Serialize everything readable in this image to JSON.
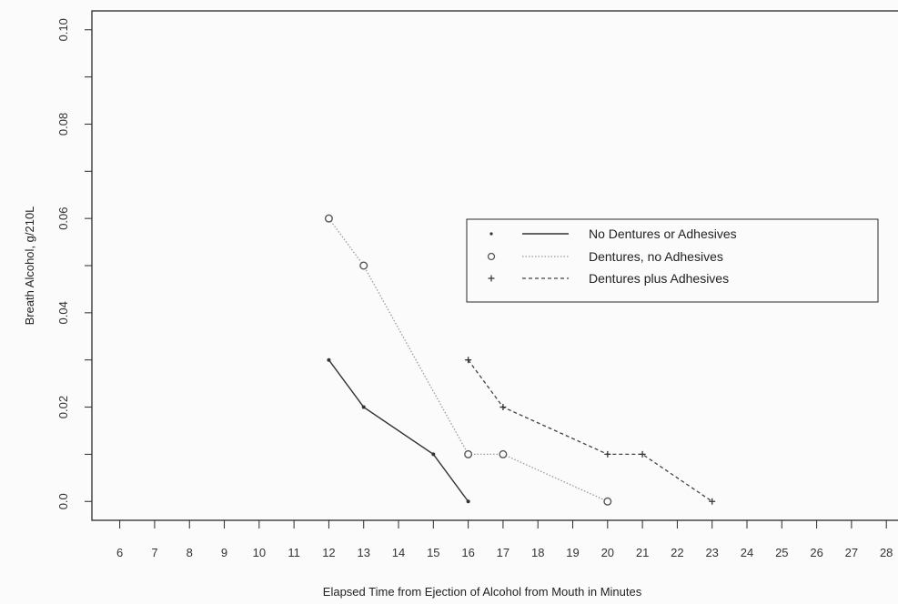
{
  "chart_data": {
    "type": "line",
    "title": "",
    "xlabel": "Elapsed Time from Ejection of Alcohol from Mouth in Minutes",
    "ylabel": "Breath Alcohol, g/210L",
    "xlim": [
      5.2,
      28.7
    ],
    "ylim": [
      -0.004,
      0.104
    ],
    "x_ticks": [
      6,
      7,
      8,
      9,
      10,
      11,
      12,
      13,
      14,
      15,
      16,
      17,
      18,
      19,
      20,
      21,
      22,
      23,
      24,
      25,
      26,
      27,
      28
    ],
    "x_tick_labels": [
      "6",
      "7",
      "8",
      "9",
      "10",
      "11",
      "12",
      "13",
      "14",
      "15",
      "16",
      "17",
      "18",
      "19",
      "20",
      "21",
      "22",
      "23",
      "24",
      "25",
      "26",
      "27",
      "28"
    ],
    "y_ticks": [
      0.0,
      0.02,
      0.04,
      0.06,
      0.08,
      0.1
    ],
    "y_tick_labels": [
      "0.0",
      "0.02",
      "0.04",
      "0.06",
      "0.08",
      "0.10"
    ],
    "grid": false,
    "legend_position": "right-center",
    "series": [
      {
        "name": "No Dentures or Adhesives",
        "marker": "dot",
        "line": "solid",
        "color": "#333333",
        "x": [
          12,
          13,
          15,
          16
        ],
        "y": [
          0.03,
          0.02,
          0.01,
          0.0
        ]
      },
      {
        "name": "Dentures, no Adhesives",
        "marker": "circle",
        "line": "dotted",
        "color": "#9a9a9a",
        "x": [
          12,
          13,
          16,
          17,
          20
        ],
        "y": [
          0.06,
          0.05,
          0.01,
          0.01,
          0.0
        ]
      },
      {
        "name": "Dentures plus Adhesives",
        "marker": "plus",
        "line": "dashed",
        "color": "#444444",
        "x": [
          16,
          17,
          20,
          21,
          23
        ],
        "y": [
          0.03,
          0.02,
          0.01,
          0.01,
          0.0
        ]
      }
    ]
  }
}
